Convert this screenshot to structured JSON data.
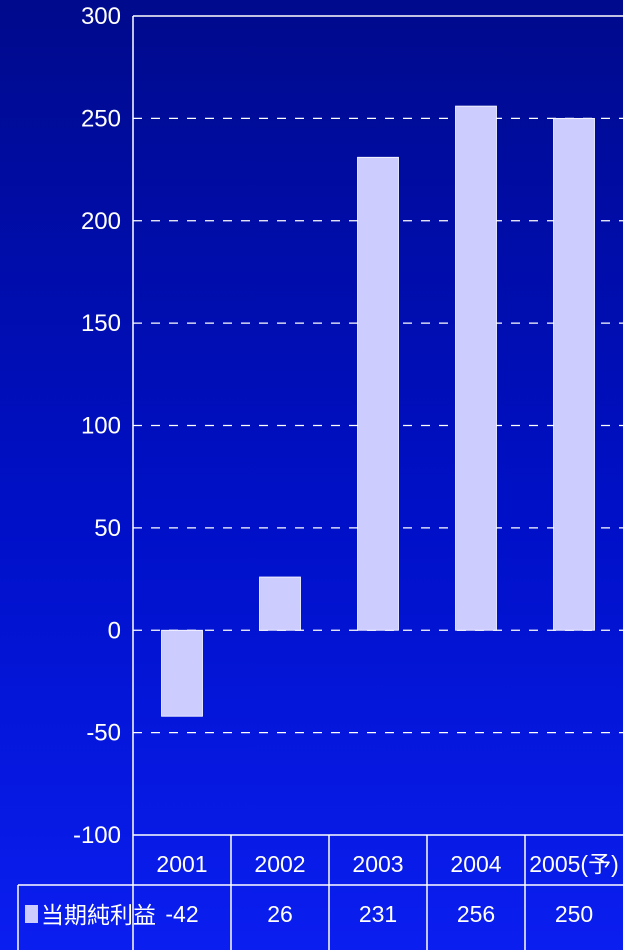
{
  "chart_data": {
    "type": "bar",
    "categories": [
      "2001",
      "2002",
      "2003",
      "2004",
      "2005(予)"
    ],
    "series": [
      {
        "name": "当期純利益",
        "values": [
          -42,
          26,
          231,
          256,
          250
        ],
        "color": "#ccccff"
      }
    ],
    "data_labels": [
      "-42",
      "26",
      "231",
      "256",
      "250"
    ],
    "yticks": [
      "300",
      "250",
      "200",
      "150",
      "100",
      "50",
      "0",
      "-50",
      "-100"
    ],
    "ylim": [
      -100,
      300
    ],
    "grid": true,
    "legend": "data-table-left"
  }
}
